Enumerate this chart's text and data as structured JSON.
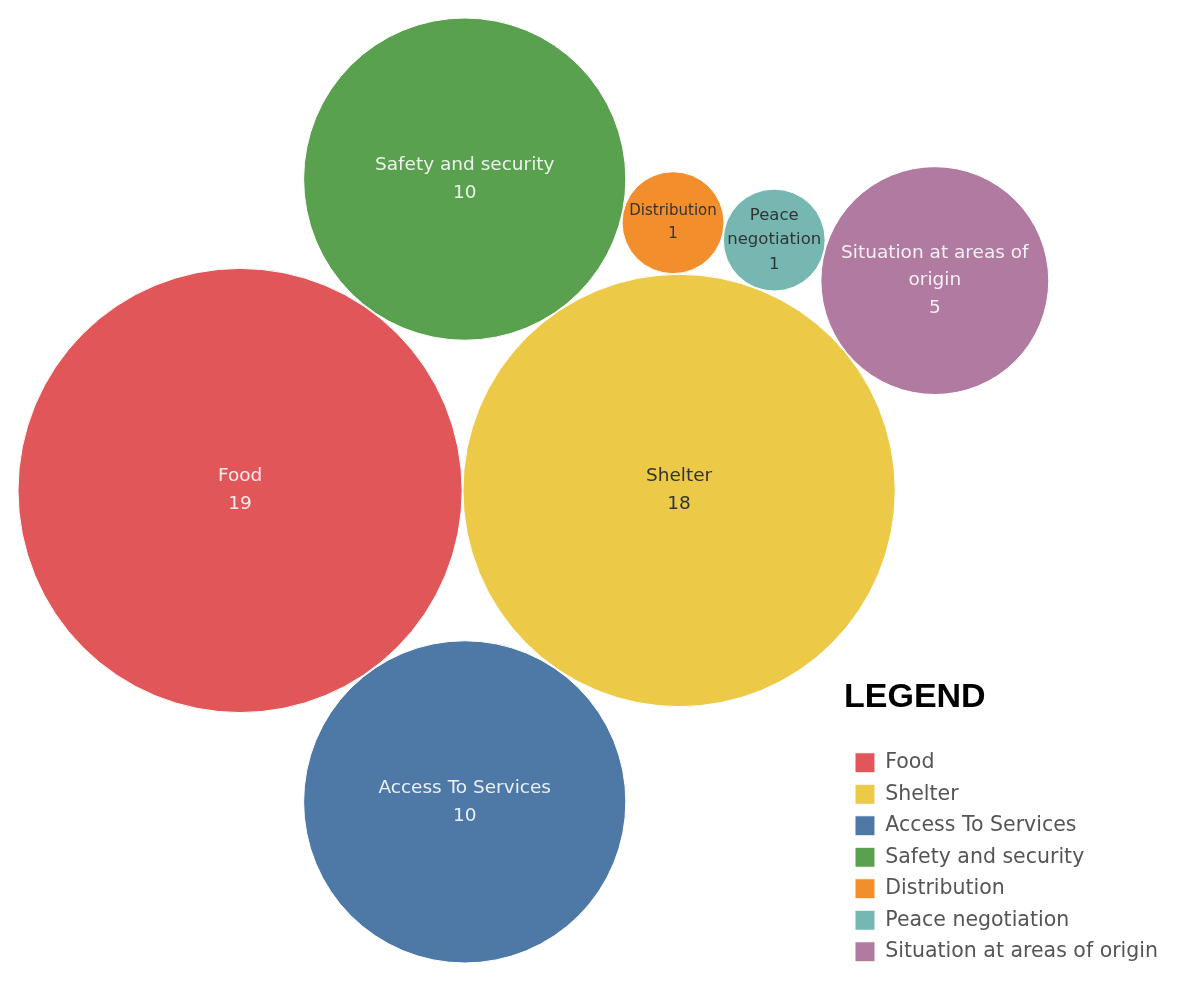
{
  "chart_data": {
    "type": "other",
    "categories": [
      "Food",
      "Shelter",
      "Access To Services",
      "Safety and security",
      "Distribution",
      "Peace negotiation",
      "Situation at areas of origin"
    ],
    "series": [
      {
        "name": "Food",
        "color": "#e15759",
        "values": [
          19,
          null,
          null,
          null,
          null,
          null,
          null
        ]
      },
      {
        "name": "Shelter",
        "color": "#edc948",
        "values": [
          null,
          18,
          null,
          null,
          null,
          null,
          null
        ]
      },
      {
        "name": "Access To Services",
        "color": "#4e79a7",
        "values": [
          null,
          null,
          10,
          null,
          null,
          null,
          null
        ]
      },
      {
        "name": "Safety and security",
        "color": "#59a14f",
        "values": [
          null,
          null,
          null,
          10,
          null,
          null,
          null
        ]
      },
      {
        "name": "Distribution",
        "color": "#f28e2b",
        "values": [
          null,
          null,
          null,
          null,
          1,
          null,
          null
        ]
      },
      {
        "name": "Peace negotiation",
        "color": "#76b7b2",
        "values": [
          null,
          null,
          null,
          null,
          null,
          1,
          null
        ]
      },
      {
        "name": "Situation at areas of origin",
        "color": "#b07aa1",
        "values": [
          null,
          null,
          null,
          null,
          null,
          null,
          5
        ]
      }
    ],
    "data_labels": true,
    "legend": "bottom right",
    "legend_title": "LEGEND"
  }
}
